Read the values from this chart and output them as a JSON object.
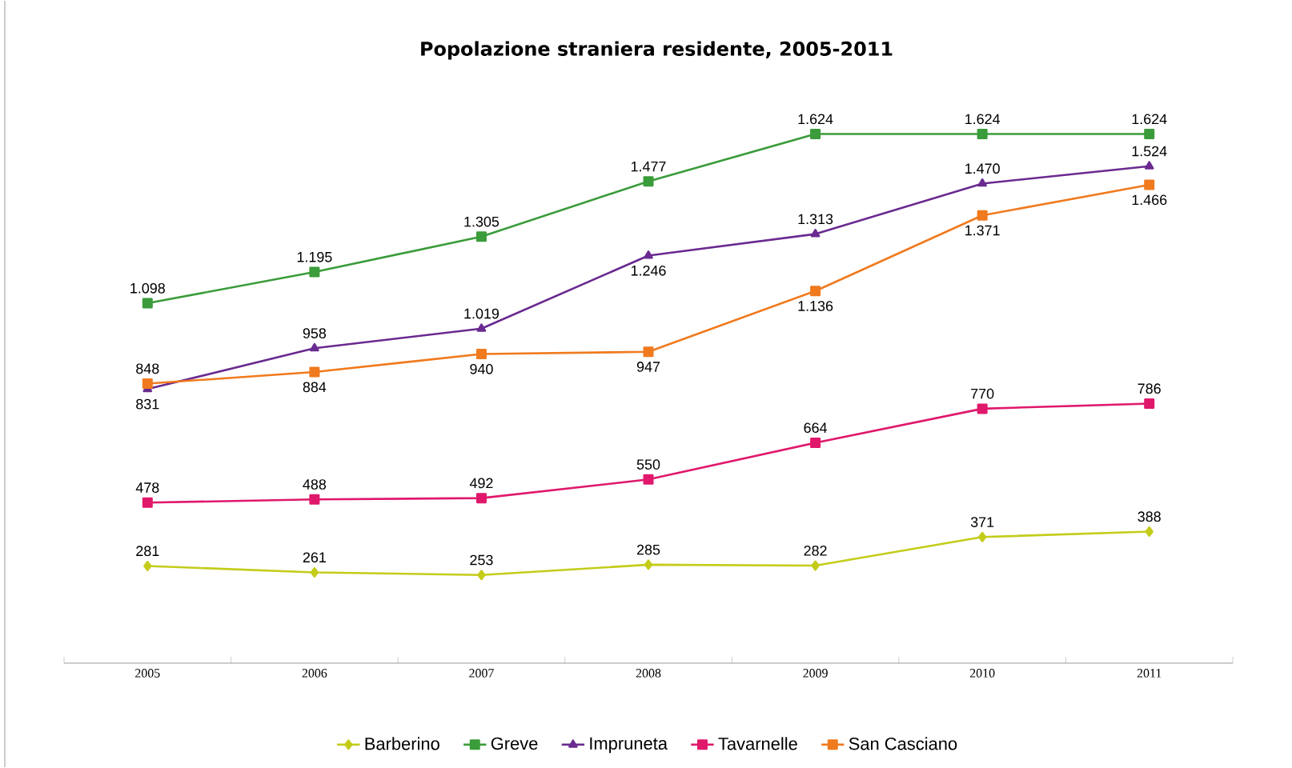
{
  "chart_data": {
    "type": "line",
    "title": "Popolazione straniera residente, 2005-2011",
    "categories": [
      "2005",
      "2006",
      "2007",
      "2008",
      "2009",
      "2010",
      "2011"
    ],
    "series": [
      {
        "name": "Barberino",
        "color": "#c4cc1a",
        "marker": "diamond",
        "values": [
          281,
          261,
          253,
          285,
          282,
          371,
          388
        ],
        "value_labels": [
          "281",
          "261",
          "253",
          "285",
          "282",
          "371",
          "388"
        ]
      },
      {
        "name": "Greve",
        "color": "#3a9c3a",
        "marker": "square",
        "values": [
          1098,
          1195,
          1305,
          1477,
          1624,
          1624,
          1624
        ],
        "value_labels": [
          "1.098",
          "1.195",
          "1.305",
          "1.477",
          "1.624",
          "1.624",
          "1.624"
        ]
      },
      {
        "name": "Impruneta",
        "color": "#6a2a90",
        "marker": "triangle",
        "values": [
          831,
          958,
          1019,
          1246,
          1313,
          1470,
          1524
        ],
        "value_labels": [
          "831",
          "958",
          "1.019",
          "1.246",
          "1.313",
          "1.470",
          "1.524"
        ]
      },
      {
        "name": "Tavarnelle",
        "color": "#e0186c",
        "marker": "square",
        "values": [
          478,
          488,
          492,
          550,
          664,
          770,
          786
        ],
        "value_labels": [
          "478",
          "488",
          "492",
          "550",
          "664",
          "770",
          "786"
        ]
      },
      {
        "name": "San Casciano",
        "color": "#f07a1e",
        "marker": "square",
        "values": [
          848,
          884,
          940,
          947,
          1136,
          1371,
          1466
        ],
        "value_labels": [
          "848",
          "884",
          "940",
          "947",
          "1.136",
          "1.371",
          "1.466"
        ]
      }
    ],
    "legend": "bottom",
    "grid": false,
    "tick_labels": "x",
    "line_style": "solid"
  }
}
